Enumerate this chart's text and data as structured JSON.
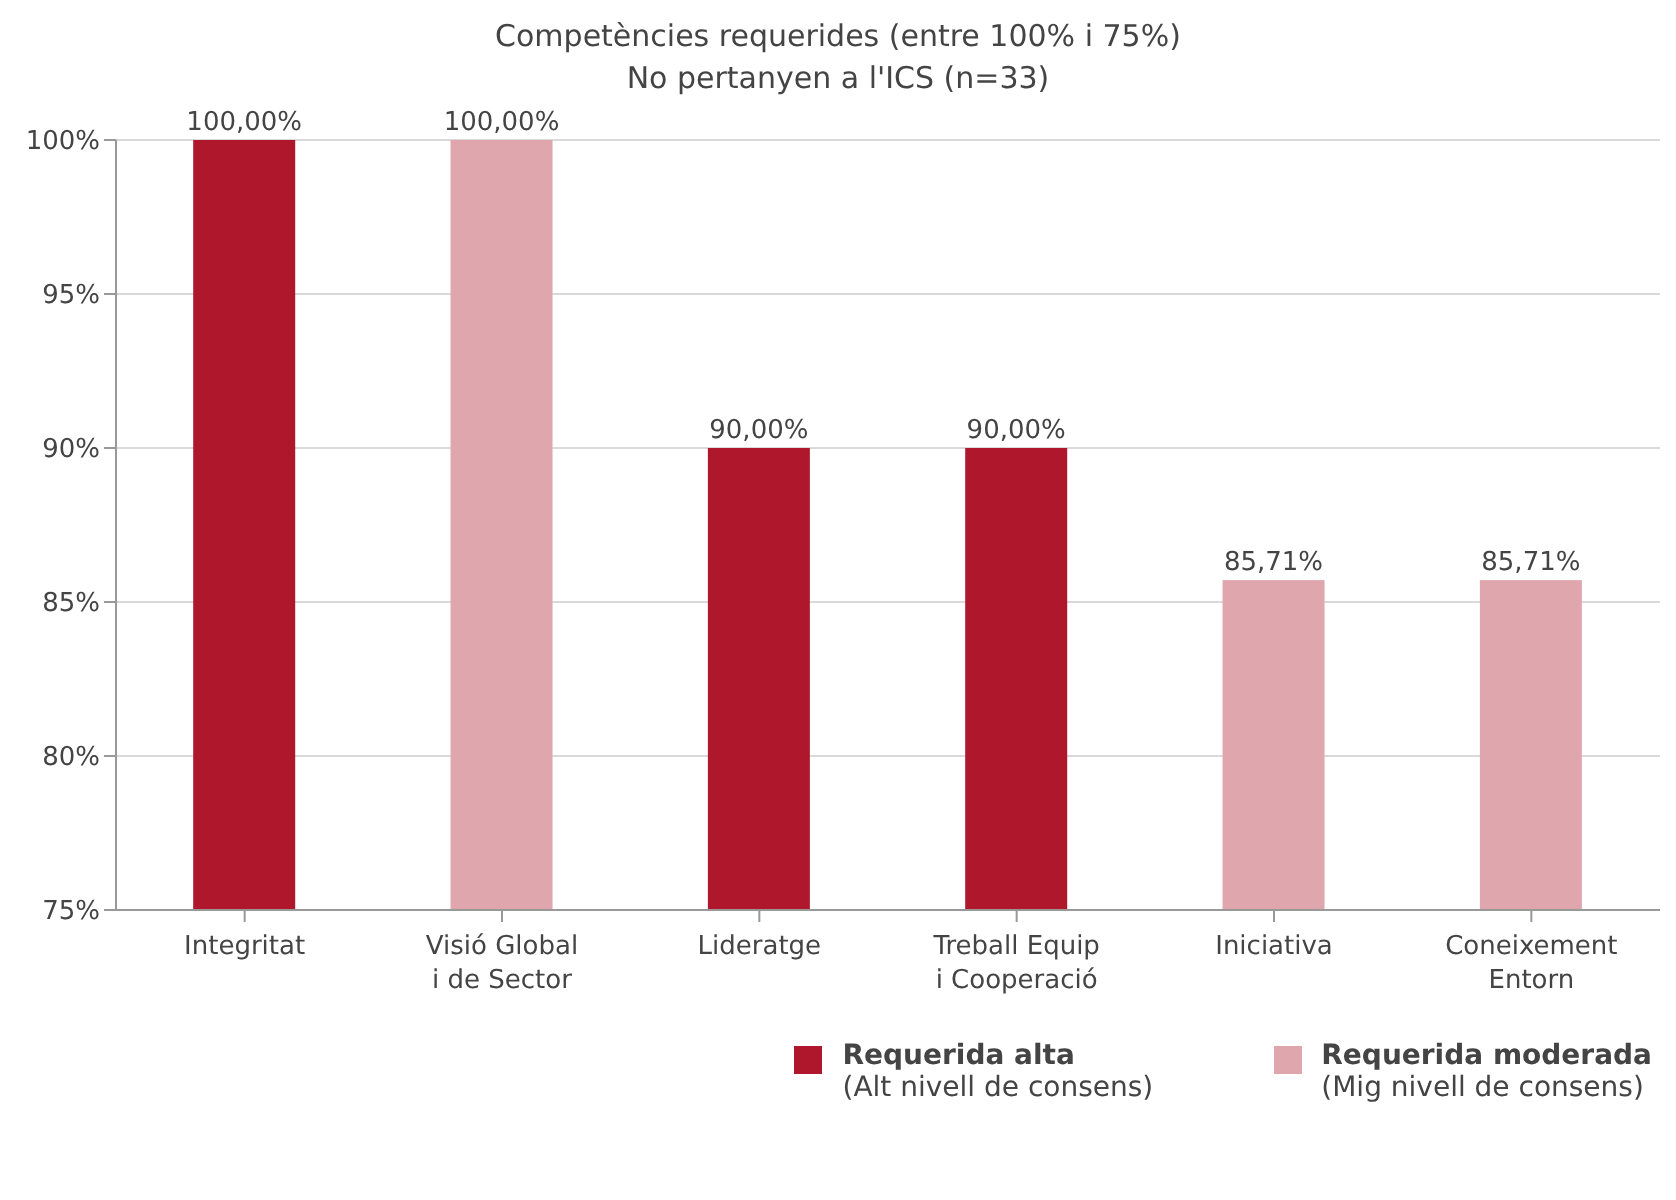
{
  "chart_data": {
    "type": "bar",
    "title": "Competències requerides  (entre 100% i 75%)",
    "subtitle": "No pertanyen a l'ICS (n=33)",
    "categories": [
      "Integritat",
      "Visió Global\ni de Sector",
      "Lideratge",
      "Treball Equip\ni Cooperació",
      "Iniciativa",
      "Coneixement\nEntorn"
    ],
    "series": [
      {
        "name": "Requerida alta",
        "color": "#ae172c",
        "values": [
          100,
          null,
          90,
          90,
          null,
          null
        ],
        "value_labels": [
          "100,00%",
          null,
          "90,00%",
          "90,00%",
          null,
          null
        ]
      },
      {
        "name": "Requerida moderada",
        "color": "#dfa6ad",
        "values": [
          null,
          100,
          null,
          null,
          85.71,
          85.71
        ],
        "value_labels": [
          null,
          "100,00%",
          null,
          null,
          "85,71%",
          "85,71%"
        ]
      }
    ],
    "ylim": [
      75,
      100
    ],
    "yticks": [
      {
        "value": 75,
        "label": "75%"
      },
      {
        "value": 80,
        "label": "80%"
      },
      {
        "value": 85,
        "label": "85%"
      },
      {
        "value": 90,
        "label": "90%"
      },
      {
        "value": 95,
        "label": "95%"
      },
      {
        "value": 100,
        "label": "100%"
      }
    ],
    "grid": "y",
    "legend": "bottom right",
    "annotations": [
      "(Alt nivell de consens)",
      "(Mig nivell de consens)"
    ]
  }
}
